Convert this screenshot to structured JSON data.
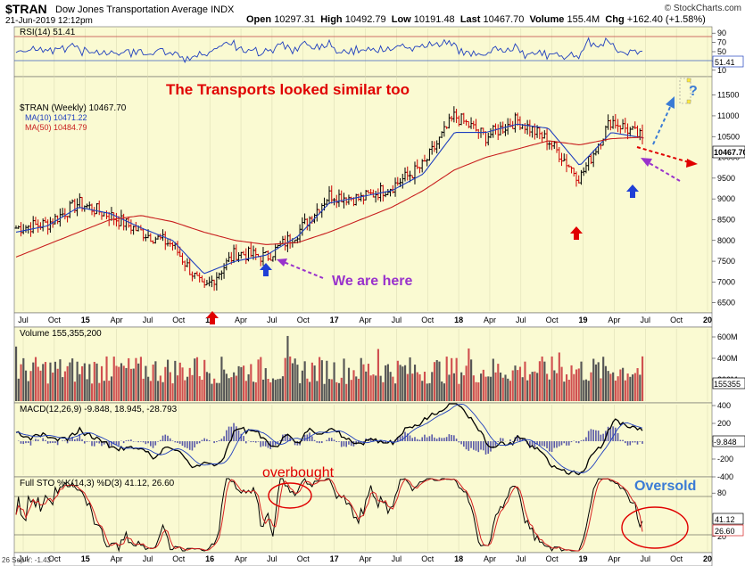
{
  "header": {
    "symbol": "$TRAN",
    "name": "Dow Jones Transportation Average INDX",
    "date": "21-Jun-2019 12:12pm",
    "open_label": "Open",
    "open": "10297.31",
    "high_label": "High",
    "high": "10492.79",
    "low_label": "Low",
    "low": "10191.48",
    "last_label": "Last",
    "last": "10467.70",
    "volume_label": "Volume",
    "volume": "155.4M",
    "chg_label": "Chg",
    "chg": "+162.40 (+1.58%)",
    "brand": "© StockCharts.com"
  },
  "panels": {
    "rsi": {
      "legend": "RSI(14) 51.41",
      "ticks": [
        "90",
        "70",
        "50",
        "30",
        "10"
      ],
      "value_tag": "51.41"
    },
    "price": {
      "legend_main": "$TRAN (Weekly) 10467.70",
      "legend_ma10": "MA(10) 10471.22",
      "legend_ma50": "MA(50) 10484.79",
      "ticks": [
        "11500",
        "11000",
        "10500",
        "10000",
        "9500",
        "9000",
        "8500",
        "8000",
        "7500",
        "7000",
        "6500"
      ],
      "value_tag": "10467.70"
    },
    "volume": {
      "legend": "Volume 155,355,200",
      "ticks": [
        "600M",
        "400M",
        "200M"
      ],
      "value_tag": "155355"
    },
    "macd": {
      "legend": "MACD(12,26,9) -9.848, 18.945, -28.793",
      "ticks": [
        "400",
        "200",
        "0",
        "-200",
        "-400"
      ],
      "value_tag": "-9.848"
    },
    "sto": {
      "legend": "Full STO %K(14,3) %D(3) 41.12, 26.60",
      "ticks": [
        "80",
        "20"
      ],
      "value_tag1": "41.12",
      "value_tag2": "26.60"
    }
  },
  "x_axis": {
    "labels": [
      "Jul",
      "Oct",
      "15",
      "Apr",
      "Jul",
      "Oct",
      "16",
      "Apr",
      "Jul",
      "Oct",
      "17",
      "Apr",
      "Jul",
      "Oct",
      "18",
      "Apr",
      "Jul",
      "Oct",
      "19",
      "Apr",
      "Jul",
      "Oct",
      "20"
    ],
    "bottom_note": "26 Sep Y: -1.43"
  },
  "annotations": {
    "title": "The Transports looked similar too",
    "we_are_here": "We are here",
    "question": "?",
    "overbought": "overbought",
    "oversold": "Oversold"
  },
  "colors": {
    "panel_bg": "#fafad2",
    "up_bar": "#000000",
    "down_bar": "#cc0000",
    "ma10": "#1f3fbf",
    "ma50": "#c81e1e",
    "annotation_red": "#e00000",
    "annotation_purple": "#9932cc",
    "annotation_blue": "#3a7bd5",
    "arrow_blue": "#1f3fd6"
  },
  "chart_data": {
    "type": "bar",
    "title": "$TRAN Dow Jones Transportation Average (Weekly)",
    "x": [
      "Jul 2014",
      "Oct 2014",
      "Jan 2015",
      "Apr 2015",
      "Jul 2015",
      "Oct 2015",
      "Jan 2016",
      "Apr 2016",
      "Jul 2016",
      "Oct 2016",
      "Jan 2017",
      "Apr 2017",
      "Jul 2017",
      "Oct 2017",
      "Jan 2018",
      "Apr 2018",
      "Jul 2018",
      "Oct 2018",
      "Jan 2019",
      "Apr 2019",
      "Jun 2019"
    ],
    "series": [
      {
        "name": "$TRAN",
        "values": [
          8300,
          8400,
          8900,
          8600,
          8200,
          7900,
          6800,
          7700,
          7600,
          8200,
          9100,
          9000,
          9300,
          9800,
          11000,
          10500,
          10900,
          10400,
          9500,
          10900,
          10467.7
        ]
      },
      {
        "name": "MA(10)",
        "values": [
          8200,
          8350,
          8800,
          8650,
          8300,
          8000,
          7200,
          7500,
          7650,
          8100,
          8900,
          9050,
          9200,
          9600,
          10600,
          10600,
          10800,
          10700,
          9800,
          10600,
          10471.22
        ]
      },
      {
        "name": "MA(50)",
        "values": [
          7600,
          7900,
          8200,
          8500,
          8600,
          8450,
          8200,
          8000,
          7900,
          7950,
          8200,
          8500,
          8800,
          9200,
          9700,
          10000,
          10200,
          10400,
          10300,
          10450,
          10484.79
        ]
      }
    ],
    "ylim": [
      6300,
      11900
    ],
    "ohlc_last": {
      "open": 10297.31,
      "high": 10492.79,
      "low": 10191.48,
      "close": 10467.7
    }
  }
}
